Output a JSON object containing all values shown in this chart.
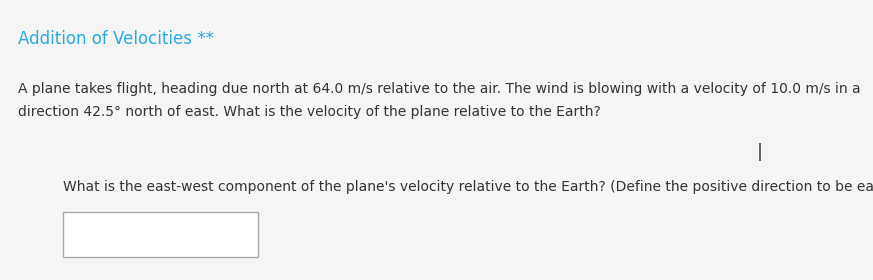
{
  "title": "Addition of Velocities **",
  "title_color": "#29ABE2",
  "title_fontsize": 12,
  "body_text": "A plane takes flight, heading due north at 64.0 m/s relative to the air. The wind is blowing with a velocity of 10.0 m/s in a\ndirection 42.5° north of east. What is the velocity of the plane relative to the Earth?",
  "body_fontsize": 10,
  "body_color": "#333333",
  "cursor_fontsize": 13,
  "cursor_color": "#333333",
  "question_text": "What is the east-west component of the plane's velocity relative to the Earth? (Define the positive direction to be east.)",
  "question_fontsize": 10,
  "question_color": "#333333",
  "box_edgecolor": "#aaaaaa",
  "box_facecolor": "#ffffff",
  "background_color": "#f5f5f5"
}
